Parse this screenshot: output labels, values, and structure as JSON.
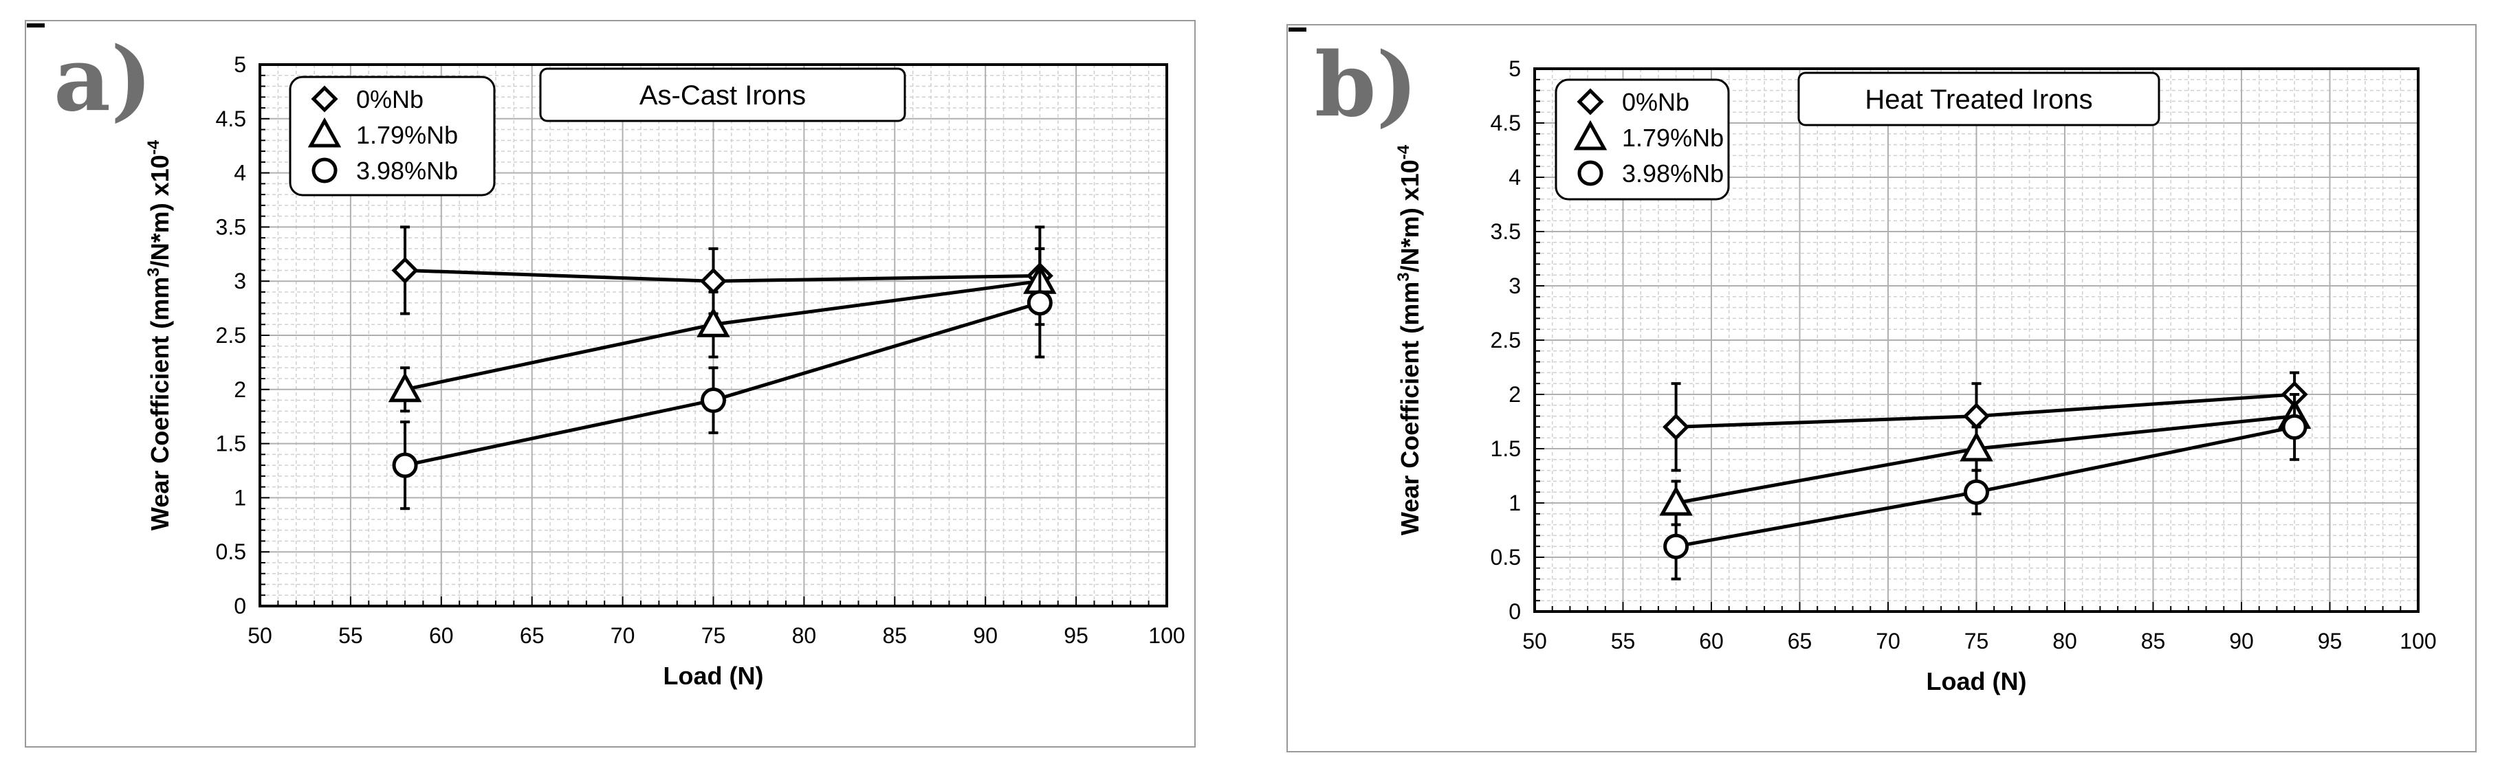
{
  "chart_data": [
    {
      "panel_label": "a)",
      "type": "line",
      "title": "As-Cast Irons",
      "xlabel": "Load (N)",
      "ylabel_prefix": "Wear Coefficient   (mm",
      "ylabel_sup": "3",
      "ylabel_suffix": "/N*m) x10",
      "ylabel_exp": "-4",
      "xlim": [
        50,
        100
      ],
      "ylim": [
        0,
        5
      ],
      "x_ticks": [
        50,
        55,
        60,
        65,
        70,
        75,
        80,
        85,
        90,
        95,
        100
      ],
      "y_ticks": [
        "0",
        "0.5",
        "1",
        "1.5",
        "2",
        "2.5",
        "3",
        "3.5",
        "4",
        "4.5",
        "5"
      ],
      "grid": true,
      "legend_position": "top-left",
      "x": [
        58,
        75,
        93
      ],
      "series": [
        {
          "name": "0%Nb",
          "marker": "diamond",
          "values": [
            3.1,
            3.0,
            3.05
          ],
          "error": [
            0.4,
            0.3,
            0.45
          ]
        },
        {
          "name": "1.79%Nb",
          "marker": "triangle",
          "values": [
            2.0,
            2.6,
            3.0
          ],
          "error": [
            0.2,
            0.3,
            0.3
          ]
        },
        {
          "name": "3.98%Nb",
          "marker": "circle",
          "values": [
            1.3,
            1.9,
            2.8
          ],
          "error": [
            0.4,
            0.3,
            0.5
          ]
        }
      ]
    },
    {
      "panel_label": "b)",
      "type": "line",
      "title": "Heat Treated Irons",
      "xlabel": "Load (N)",
      "ylabel_prefix": "Wear Coefficient   (mm",
      "ylabel_sup": "3",
      "ylabel_suffix": "/N*m) x10",
      "ylabel_exp": "-4",
      "xlim": [
        50,
        100
      ],
      "ylim": [
        0,
        5
      ],
      "x_ticks": [
        50,
        55,
        60,
        65,
        70,
        75,
        80,
        85,
        90,
        95,
        100
      ],
      "y_ticks": [
        "0",
        "0.5",
        "1",
        "1.5",
        "2",
        "2.5",
        "3",
        "3.5",
        "4",
        "4.5",
        "5"
      ],
      "grid": true,
      "legend_position": "top-left",
      "x": [
        58,
        75,
        93
      ],
      "series": [
        {
          "name": "0%Nb",
          "marker": "diamond",
          "values": [
            1.7,
            1.8,
            2.0
          ],
          "error": [
            0.4,
            0.3,
            0.2
          ]
        },
        {
          "name": "1.79%Nb",
          "marker": "triangle",
          "values": [
            1.0,
            1.5,
            1.8
          ],
          "error": [
            0.2,
            0.2,
            0.2
          ]
        },
        {
          "name": "3.98%Nb",
          "marker": "circle",
          "values": [
            0.6,
            1.1,
            1.7
          ],
          "error": [
            0.3,
            0.2,
            0.3
          ]
        }
      ]
    }
  ]
}
